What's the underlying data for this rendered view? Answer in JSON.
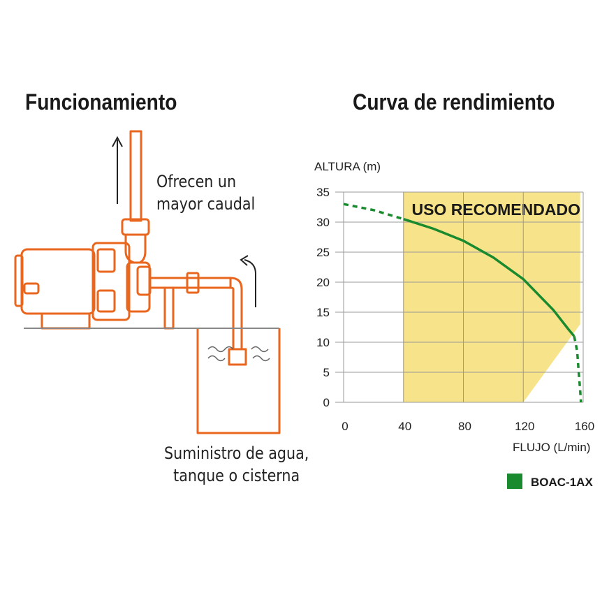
{
  "left": {
    "title": "Funcionamiento",
    "caption_flow": [
      "Ofrecen un",
      "mayor caudal"
    ],
    "caption_supply": [
      "Suministro de agua,",
      "tanque o cisterna"
    ]
  },
  "right": {
    "title": "Curva de rendimiento"
  },
  "colors": {
    "pump_orange": "#e8661e",
    "curve_green": "#1a8a2e",
    "zone_yellow": "#f7e38a",
    "grid": "#9a9a9a"
  },
  "chart_data": {
    "type": "line",
    "title": "Curva de rendimiento",
    "ylabel": "ALTURA (m)",
    "xlabel": "FLUJO (L/min)",
    "xlim": [
      0,
      160
    ],
    "ylim": [
      0,
      35
    ],
    "xticks": [
      0,
      40,
      80,
      120,
      160
    ],
    "yticks": [
      0,
      5,
      10,
      15,
      20,
      25,
      30,
      35
    ],
    "grid": true,
    "recommended_zone": {
      "label": "USO RECOMENDADO",
      "x_from": 40,
      "x_to": 158,
      "y_top": 35
    },
    "series": [
      {
        "name": "BOAC-1AX",
        "color": "#1a8a2e",
        "solid": [
          [
            40,
            30.5
          ],
          [
            60,
            28.9
          ],
          [
            80,
            26.9
          ],
          [
            100,
            24.1
          ],
          [
            120,
            20.5
          ],
          [
            140,
            15.4
          ],
          [
            150,
            12.2
          ],
          [
            154,
            11.0
          ]
        ],
        "dashed": [
          [
            0,
            33.0
          ],
          [
            20,
            32.0
          ],
          [
            40,
            30.5
          ]
        ],
        "dashed_tail": [
          [
            154,
            11.0
          ],
          [
            156,
            8.5
          ],
          [
            157,
            5.0
          ],
          [
            158,
            2.0
          ],
          [
            158.5,
            0
          ]
        ]
      }
    ],
    "legend": {
      "label": "BOAC-1AX",
      "position": "bottom-right"
    }
  }
}
